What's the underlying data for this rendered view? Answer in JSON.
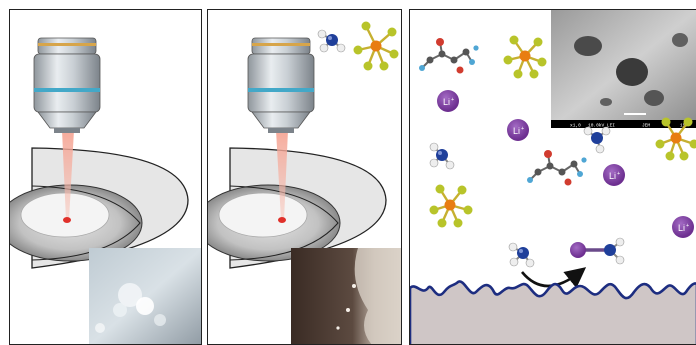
{
  "labels": {
    "li_ion": "Li",
    "li_charge": "+"
  },
  "sem_image": {
    "info_left": "x1,0",
    "info_mid": "10.0kV LEI",
    "info_right": "JEM",
    "info_far": "15:"
  },
  "colors": {
    "lithium": "#7b3f9e",
    "nitrogen": "#1f3f9a",
    "hydrogen": "#eeeeee",
    "phosphorus": "#e87d12",
    "fluorine": "#b8c42a",
    "laser": "#e0453a",
    "electrode": "#cfc6c6",
    "interface_line": "#1d2d80"
  },
  "icons": [
    "microscope-objective",
    "laser-beam",
    "sample-holder",
    "microscope-photo",
    "sem-micrograph",
    "ammonia-molecule",
    "pf6-anion",
    "fec-molecule",
    "lithium-ion",
    "reaction-arrow"
  ]
}
